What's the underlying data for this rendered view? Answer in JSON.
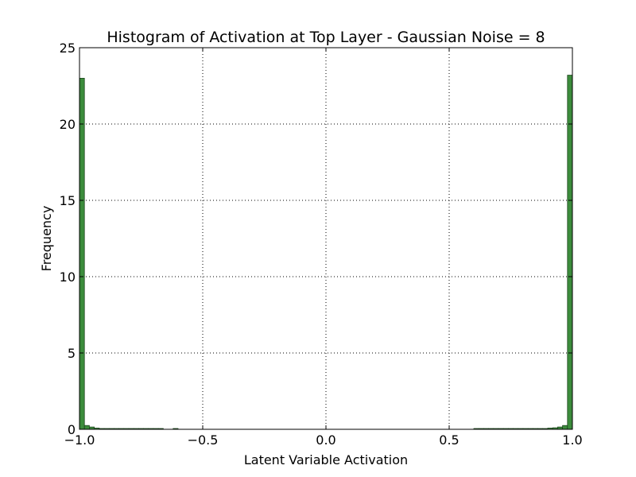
{
  "chart_data": {
    "type": "bar",
    "title": "Histogram of Activation at Top Layer - Gaussian Noise = 8",
    "xlabel": "Latent Variable Activation",
    "ylabel": "Frequency",
    "xlim": [
      -1.0,
      1.0
    ],
    "ylim": [
      0,
      25
    ],
    "xticks": [
      -1.0,
      -0.5,
      0.0,
      0.5,
      1.0
    ],
    "xtick_labels": [
      "−1.0",
      "−0.5",
      "0.0",
      "0.5",
      "1.0"
    ],
    "yticks": [
      0,
      5,
      10,
      15,
      20,
      25
    ],
    "ytick_labels": [
      "0",
      "5",
      "10",
      "15",
      "20",
      "25"
    ],
    "grid": true,
    "bar_color": "#3c8c3c",
    "bin_width": 0.02,
    "bins": [
      {
        "x": -1.0,
        "value": 23.0
      },
      {
        "x": -0.98,
        "value": 0.25
      },
      {
        "x": -0.96,
        "value": 0.15
      },
      {
        "x": -0.94,
        "value": 0.08
      },
      {
        "x": -0.92,
        "value": 0.05
      },
      {
        "x": -0.9,
        "value": 0.04
      },
      {
        "x": -0.88,
        "value": 0.03
      },
      {
        "x": -0.86,
        "value": 0.03
      },
      {
        "x": -0.84,
        "value": 0.02
      },
      {
        "x": -0.82,
        "value": 0.02
      },
      {
        "x": -0.8,
        "value": 0.02
      },
      {
        "x": -0.78,
        "value": 0.02
      },
      {
        "x": -0.76,
        "value": 0.01
      },
      {
        "x": -0.74,
        "value": 0.01
      },
      {
        "x": -0.72,
        "value": 0.01
      },
      {
        "x": -0.7,
        "value": 0.01
      },
      {
        "x": -0.68,
        "value": 0.01
      },
      {
        "x": -0.62,
        "value": 0.01
      },
      {
        "x": 0.6,
        "value": 0.01
      },
      {
        "x": 0.62,
        "value": 0.01
      },
      {
        "x": 0.64,
        "value": 0.01
      },
      {
        "x": 0.66,
        "value": 0.01
      },
      {
        "x": 0.68,
        "value": 0.01
      },
      {
        "x": 0.7,
        "value": 0.01
      },
      {
        "x": 0.72,
        "value": 0.01
      },
      {
        "x": 0.74,
        "value": 0.01
      },
      {
        "x": 0.76,
        "value": 0.02
      },
      {
        "x": 0.78,
        "value": 0.02
      },
      {
        "x": 0.8,
        "value": 0.02
      },
      {
        "x": 0.82,
        "value": 0.02
      },
      {
        "x": 0.84,
        "value": 0.02
      },
      {
        "x": 0.86,
        "value": 0.03
      },
      {
        "x": 0.88,
        "value": 0.05
      },
      {
        "x": 0.9,
        "value": 0.08
      },
      {
        "x": 0.92,
        "value": 0.1
      },
      {
        "x": 0.94,
        "value": 0.15
      },
      {
        "x": 0.96,
        "value": 0.25
      },
      {
        "x": 0.98,
        "value": 23.2
      }
    ]
  }
}
